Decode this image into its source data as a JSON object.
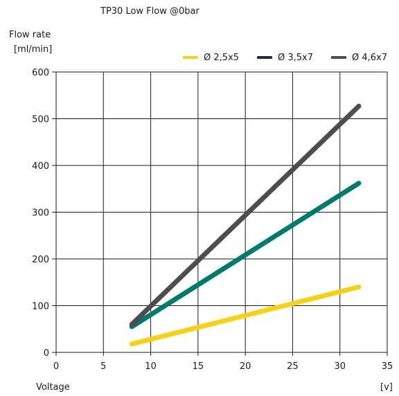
{
  "chart_data": {
    "type": "line",
    "title": "TP30 Low Flow @0bar",
    "ylabel_line1": "Flow rate",
    "ylabel_line2": "[ml/min]",
    "xlabel": "Voltage",
    "xunit": "[v]",
    "xlim": [
      0,
      35
    ],
    "ylim": [
      0,
      600
    ],
    "xticks": [
      0,
      5,
      10,
      15,
      20,
      25,
      30,
      35
    ],
    "yticks": [
      0,
      100,
      200,
      300,
      400,
      500,
      600
    ],
    "grid": true,
    "legend_position": "top-right",
    "series": [
      {
        "name": "Ø 2,5x5",
        "color": "#f7d117",
        "legend_color": "#f7d117",
        "x": [
          8,
          32
        ],
        "y": [
          18,
          140
        ]
      },
      {
        "name": "Ø 3,5x7",
        "color": "#007a6c",
        "legend_color": "#1f2a44",
        "x": [
          8,
          32
        ],
        "y": [
          55,
          362
        ]
      },
      {
        "name": "Ø 4,6x7",
        "color": "#4d4d4f",
        "legend_color": "#4d4d4f",
        "x": [
          8,
          32
        ],
        "y": [
          60,
          527
        ]
      }
    ]
  }
}
